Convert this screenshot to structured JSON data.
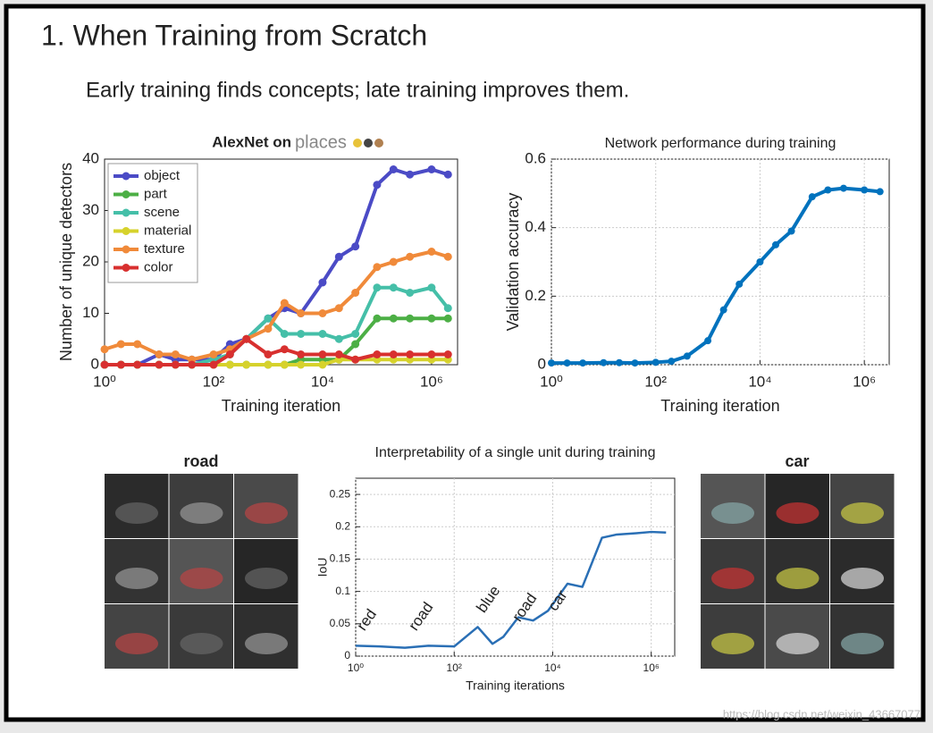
{
  "slide": {
    "title": "1. When Training from Scratch",
    "subtitle": "Early training finds concepts; late training improves them.",
    "left_panel_label": "road",
    "right_panel_label": "car",
    "watermark": "https://blog.csdn.net/weixin_43667077"
  },
  "chart_data": [
    {
      "type": "line",
      "title": "AlexNet on",
      "title_logo": "places",
      "x_label": "Training iteration",
      "y_label": "Number of unique detectors",
      "x": [
        1,
        2,
        4,
        10,
        20,
        40,
        100,
        200,
        400,
        1000,
        2000,
        4000,
        10000,
        20000,
        40000,
        100000,
        200000,
        400000,
        1000000,
        2000000
      ],
      "series": [
        {
          "name": "object",
          "color": "#4b4bc6",
          "values": [
            0,
            0,
            0,
            2,
            1,
            1,
            1,
            4,
            5,
            9,
            11,
            10,
            16,
            21,
            23,
            35,
            38,
            37,
            38,
            37
          ]
        },
        {
          "name": "part",
          "color": "#4caf45",
          "values": [
            0,
            0,
            0,
            0,
            0,
            0,
            0,
            0,
            0,
            0,
            0,
            1,
            1,
            1,
            4,
            9,
            9,
            9,
            9,
            9
          ]
        },
        {
          "name": "scene",
          "color": "#45bfa8",
          "values": [
            0,
            0,
            0,
            0,
            0,
            0,
            1,
            2,
            5,
            9,
            6,
            6,
            6,
            5,
            6,
            15,
            15,
            14,
            15,
            11
          ]
        },
        {
          "name": "material",
          "color": "#d6d22c",
          "values": [
            0,
            0,
            0,
            0,
            0,
            0,
            0,
            0,
            0,
            0,
            0,
            0,
            0,
            1,
            1,
            1,
            1,
            1,
            1,
            1
          ]
        },
        {
          "name": "texture",
          "color": "#f08a3a",
          "values": [
            3,
            4,
            4,
            2,
            2,
            1,
            2,
            3,
            5,
            7,
            12,
            10,
            10,
            11,
            14,
            19,
            20,
            21,
            22,
            21
          ]
        },
        {
          "name": "color",
          "color": "#d8302f",
          "values": [
            0,
            0,
            0,
            0,
            0,
            0,
            0,
            2,
            5,
            2,
            3,
            2,
            2,
            2,
            1,
            2,
            2,
            2,
            2,
            2
          ]
        }
      ],
      "log_x": true,
      "xlim": [
        1,
        3000000
      ],
      "xticks": [
        {
          "value": 1,
          "label": "10⁰"
        },
        {
          "value": 100,
          "label": "10²"
        },
        {
          "value": 10000,
          "label": "10⁴"
        },
        {
          "value": 1000000,
          "label": "10⁶"
        }
      ],
      "ylim": [
        0,
        40
      ],
      "yticks": [
        0,
        10,
        20,
        30,
        40
      ],
      "grid": false,
      "legend": "upper-left",
      "markers": true
    },
    {
      "type": "line",
      "title": "Network performance during training",
      "x_label": "Training iteration",
      "y_label": "Validation accuracy",
      "x": [
        1,
        2,
        4,
        10,
        20,
        40,
        100,
        200,
        400,
        1000,
        2000,
        4000,
        10000,
        20000,
        40000,
        100000,
        200000,
        400000,
        1000000,
        2000000
      ],
      "series": [
        {
          "color": "#0072bd",
          "values": [
            0.005,
            0.005,
            0.005,
            0.006,
            0.006,
            0.005,
            0.007,
            0.01,
            0.025,
            0.07,
            0.16,
            0.235,
            0.3,
            0.35,
            0.39,
            0.49,
            0.51,
            0.515,
            0.51,
            0.505
          ]
        }
      ],
      "log_x": true,
      "xlim": [
        1,
        3000000
      ],
      "xticks": [
        {
          "value": 1,
          "label": "10⁰"
        },
        {
          "value": 100,
          "label": "10²"
        },
        {
          "value": 10000,
          "label": "10⁴"
        },
        {
          "value": 1000000,
          "label": "10⁶"
        }
      ],
      "ylim": [
        0,
        0.6
      ],
      "yticks": [
        0,
        0.2,
        0.4,
        0.6
      ],
      "grid": true,
      "markers": true
    },
    {
      "type": "line",
      "title": "Interpretability of a single unit during training",
      "x_label": "Training iterations",
      "y_label": "IoU",
      "x": [
        1,
        3,
        10,
        30,
        100,
        300,
        600,
        1000,
        2000,
        4000,
        8000,
        20000,
        40000,
        100000,
        200000,
        500000,
        1000000,
        2000000
      ],
      "series": [
        {
          "color": "#2a6fb5",
          "values": [
            0.016,
            0.015,
            0.013,
            0.016,
            0.015,
            0.045,
            0.019,
            0.03,
            0.06,
            0.055,
            0.07,
            0.112,
            0.107,
            0.183,
            0.188,
            0.19,
            0.192,
            0.191
          ]
        }
      ],
      "log_x": true,
      "xlim": [
        1,
        3000000
      ],
      "xticks": [
        {
          "value": 1,
          "label": "10⁰"
        },
        {
          "value": 100,
          "label": "10²"
        },
        {
          "value": 10000,
          "label": "10⁴"
        },
        {
          "value": 1000000,
          "label": "10⁶"
        }
      ],
      "ylim": [
        0,
        0.275
      ],
      "yticks": [
        0,
        0.05,
        0.1,
        0.15,
        0.2,
        0.25
      ],
      "grid": true,
      "markers": false,
      "annotations": [
        "red",
        "road",
        "blue",
        "road",
        "car"
      ]
    }
  ]
}
